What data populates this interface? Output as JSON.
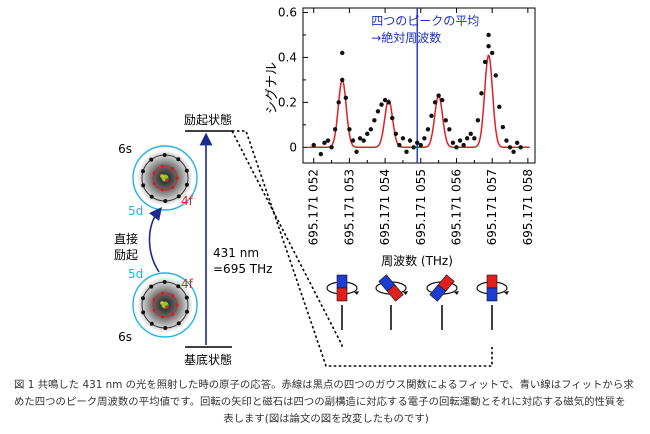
{
  "energy_levels": {
    "excited": "励起状態",
    "ground": "基底状態",
    "transition_wavelength": "431 nm",
    "transition_frequency": "=695 THz",
    "direct_excitation": [
      "直接",
      "励起"
    ]
  },
  "atom_labels": {
    "upper": {
      "s": "6s",
      "d": "5d",
      "f": "4f"
    },
    "lower": {
      "s": "6s",
      "d": "5d",
      "f": "4f"
    }
  },
  "annotation": [
    "四つのピークの平均",
    "→絶対周波数"
  ],
  "chart_data": {
    "type": "scatter",
    "xlabel": "周波数 (THz)",
    "ylabel": "シグナル",
    "x_ticks": [
      "695.171 052",
      "695.171 053",
      "695.171 054",
      "695.171 055",
      "695.171 056",
      "695.171 057",
      "695.171 058"
    ],
    "y_ticks": [
      "0",
      "0.2",
      "0.4",
      "0.6"
    ],
    "xlim": [
      695.1710517,
      695.1710582
    ],
    "ylim": [
      -0.07,
      0.62
    ],
    "mean_line_x": 695.1710549,
    "peaks": [
      {
        "x": 695.1710528,
        "height": 0.3,
        "width": 2.6e-07
      },
      {
        "x": 695.1710541,
        "height": 0.21,
        "width": 2.6e-07
      },
      {
        "x": 695.1710555,
        "height": 0.23,
        "width": 2.6e-07
      },
      {
        "x": 695.1710569,
        "height": 0.41,
        "width": 2.6e-07
      }
    ],
    "points": [
      [
        695.171052,
        0.01
      ],
      [
        695.1710522,
        -0.03
      ],
      [
        695.1710523,
        0.02
      ],
      [
        695.1710524,
        0.03
      ],
      [
        695.1710525,
        0.0
      ],
      [
        695.1710526,
        0.08
      ],
      [
        695.1710527,
        0.2
      ],
      [
        695.1710528,
        0.42
      ],
      [
        695.1710528,
        0.3
      ],
      [
        695.1710529,
        0.22
      ],
      [
        695.171053,
        0.08
      ],
      [
        695.1710531,
        0.03
      ],
      [
        695.1710532,
        -0.02
      ],
      [
        695.1710533,
        0.04
      ],
      [
        695.1710534,
        0.03
      ],
      [
        695.1710535,
        0.06
      ],
      [
        695.1710536,
        0.08
      ],
      [
        695.1710537,
        0.12
      ],
      [
        695.1710538,
        0.16
      ],
      [
        695.1710539,
        0.19
      ],
      [
        695.171054,
        0.21
      ],
      [
        695.1710541,
        0.2
      ],
      [
        695.1710542,
        0.13
      ],
      [
        695.1710543,
        0.06
      ],
      [
        695.1710544,
        0.01
      ],
      [
        695.1710545,
        0.04
      ],
      [
        695.1710546,
        -0.02
      ],
      [
        695.1710547,
        0.03
      ],
      [
        695.1710548,
        0.0
      ],
      [
        695.1710549,
        0.02
      ],
      [
        695.171055,
        0.01
      ],
      [
        695.1710551,
        0.04
      ],
      [
        695.1710552,
        0.08
      ],
      [
        695.1710553,
        0.14
      ],
      [
        695.1710554,
        0.2
      ],
      [
        695.1710555,
        0.23
      ],
      [
        695.1710556,
        0.21
      ],
      [
        695.1710557,
        0.12
      ],
      [
        695.1710558,
        0.08
      ],
      [
        695.1710559,
        0.02
      ],
      [
        695.171056,
        0.0
      ],
      [
        695.1710561,
        0.03
      ],
      [
        695.1710562,
        0.01
      ],
      [
        695.1710563,
        0.04
      ],
      [
        695.1710564,
        0.06
      ],
      [
        695.1710565,
        0.04
      ],
      [
        695.1710566,
        0.12
      ],
      [
        695.1710567,
        0.24
      ],
      [
        695.1710568,
        0.38
      ],
      [
        695.1710569,
        0.5
      ],
      [
        695.1710569,
        0.45
      ],
      [
        695.171057,
        0.42
      ],
      [
        695.1710571,
        0.32
      ],
      [
        695.1710572,
        0.18
      ],
      [
        695.1710573,
        0.09
      ],
      [
        695.1710574,
        0.03
      ],
      [
        695.1710575,
        0.0
      ],
      [
        695.1710576,
        -0.02
      ],
      [
        695.1710577,
        0.02
      ],
      [
        695.1710578,
        0.0
      ]
    ]
  },
  "caption": {
    "line1": "図 1  共鳴した 431 nm の光を照射した時の原子の応答。赤線は黒点の四つのガウス関数によるフィットで、青い線はフィットから求",
    "line2": "めた四つのピーク周波数の平均値です。回転の矢印と磁石は四つの副構造に対応する電子の回転運動とそれに対応する磁気的性質を",
    "line3": "表します(図は論文の図を改変したものです)"
  },
  "colors": {
    "fit": "#e02020",
    "mean_line": "#2030c8",
    "label_5d": "#20b4e6",
    "label_4f": "#e02020",
    "magnet_red": "#e02020",
    "magnet_blue": "#1e3cd2"
  }
}
